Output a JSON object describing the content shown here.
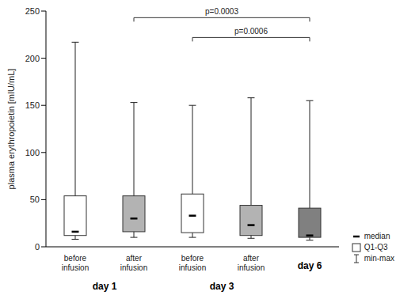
{
  "chart_data": {
    "type": "box",
    "ylabel": "plasma erythropoietin [mIU/mL]",
    "categories": [
      "before infusion",
      "after infusion",
      "before infusion",
      "after infusion",
      null
    ],
    "groups": [
      "day 1",
      "day 1",
      "day 3",
      "day 3",
      "day 6"
    ],
    "min": [
      8,
      10,
      10,
      9,
      7
    ],
    "q1": [
      12,
      16,
      15,
      12,
      10
    ],
    "median": [
      16,
      30,
      33,
      23,
      12
    ],
    "q3": [
      54,
      54,
      56,
      44,
      41
    ],
    "max": [
      217,
      153,
      150,
      158,
      155
    ],
    "colors": [
      "#ffffff",
      "#b3b3b3",
      "#ffffff",
      "#b3b3b3",
      "#808080"
    ],
    "ylim": [
      0,
      250
    ],
    "yticks": [
      0,
      50,
      100,
      150,
      200,
      250
    ],
    "grid": false,
    "legend": "lower right",
    "legend_entries": [
      "median",
      "Q1-Q3",
      "min-max"
    ],
    "annotations": [
      {
        "text": "p=0.0003",
        "from": 1,
        "to": 4,
        "y": 243
      },
      {
        "text": "p=0.0006",
        "from": 2,
        "to": 4,
        "y": 222
      }
    ]
  }
}
